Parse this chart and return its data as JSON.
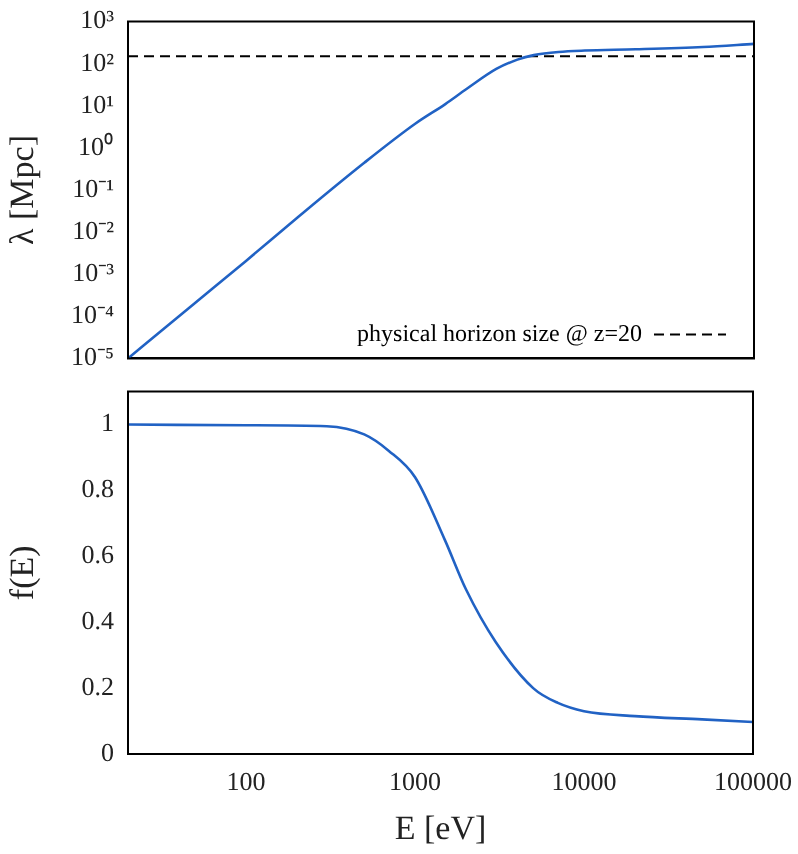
{
  "chart_data": [
    {
      "type": "line",
      "ylabel": "λ [Mpc]",
      "log": "xy",
      "tick_labels": "y",
      "legend": "bottom right",
      "x": [
        20,
        50,
        100,
        200,
        500,
        1000,
        1500,
        2000,
        3000,
        4000,
        5000,
        7000,
        10000,
        20000,
        50000,
        100000
      ],
      "series": [
        {
          "color": "#2162c4",
          "values": [
            1e-05,
            0.00021,
            0.0021,
            0.022,
            0.45,
            3.8,
            11,
            25,
            75,
            125,
            160,
            190,
            205,
            220,
            250,
            295
          ]
        },
        {
          "name": "physical horizon size @ z=20",
          "color": "#000000",
          "line_style": "dashed",
          "x": [
            20,
            100000
          ],
          "values": [
            150,
            150
          ]
        }
      ],
      "xlim": [
        20,
        100000
      ],
      "ylim": [
        1e-05,
        1000
      ],
      "yticks": [
        {
          "value": 1e-05,
          "label": "10⁻⁵"
        },
        {
          "value": 0.0001,
          "label": "10⁻⁴"
        },
        {
          "value": 0.001,
          "label": "10⁻³"
        },
        {
          "value": 0.01,
          "label": "10⁻²"
        },
        {
          "value": 0.1,
          "label": "10⁻¹"
        },
        {
          "value": 1,
          "label": "10⁰"
        },
        {
          "value": 10,
          "label": "10¹"
        },
        {
          "value": 100,
          "label": "10²"
        },
        {
          "value": 1000,
          "label": "10³"
        }
      ]
    },
    {
      "type": "line",
      "xlabel": "E [eV]",
      "ylabel": "f(E)",
      "log": "x",
      "x": [
        20,
        100,
        300,
        500,
        700,
        1000,
        1500,
        2000,
        3000,
        5000,
        7000,
        10000,
        20000,
        50000,
        100000
      ],
      "series": [
        {
          "color": "#2162c4",
          "values": [
            1.0,
            0.998,
            0.995,
            0.97,
            0.92,
            0.84,
            0.65,
            0.5,
            0.34,
            0.2,
            0.155,
            0.13,
            0.115,
            0.105,
            0.097
          ]
        }
      ],
      "xlim": [
        20,
        100000
      ],
      "xticks": [
        100,
        1000,
        10000,
        100000
      ],
      "ylim": [
        0,
        1.1
      ],
      "yticks": [
        0,
        0.2,
        0.4,
        0.6,
        0.8,
        1
      ]
    }
  ]
}
